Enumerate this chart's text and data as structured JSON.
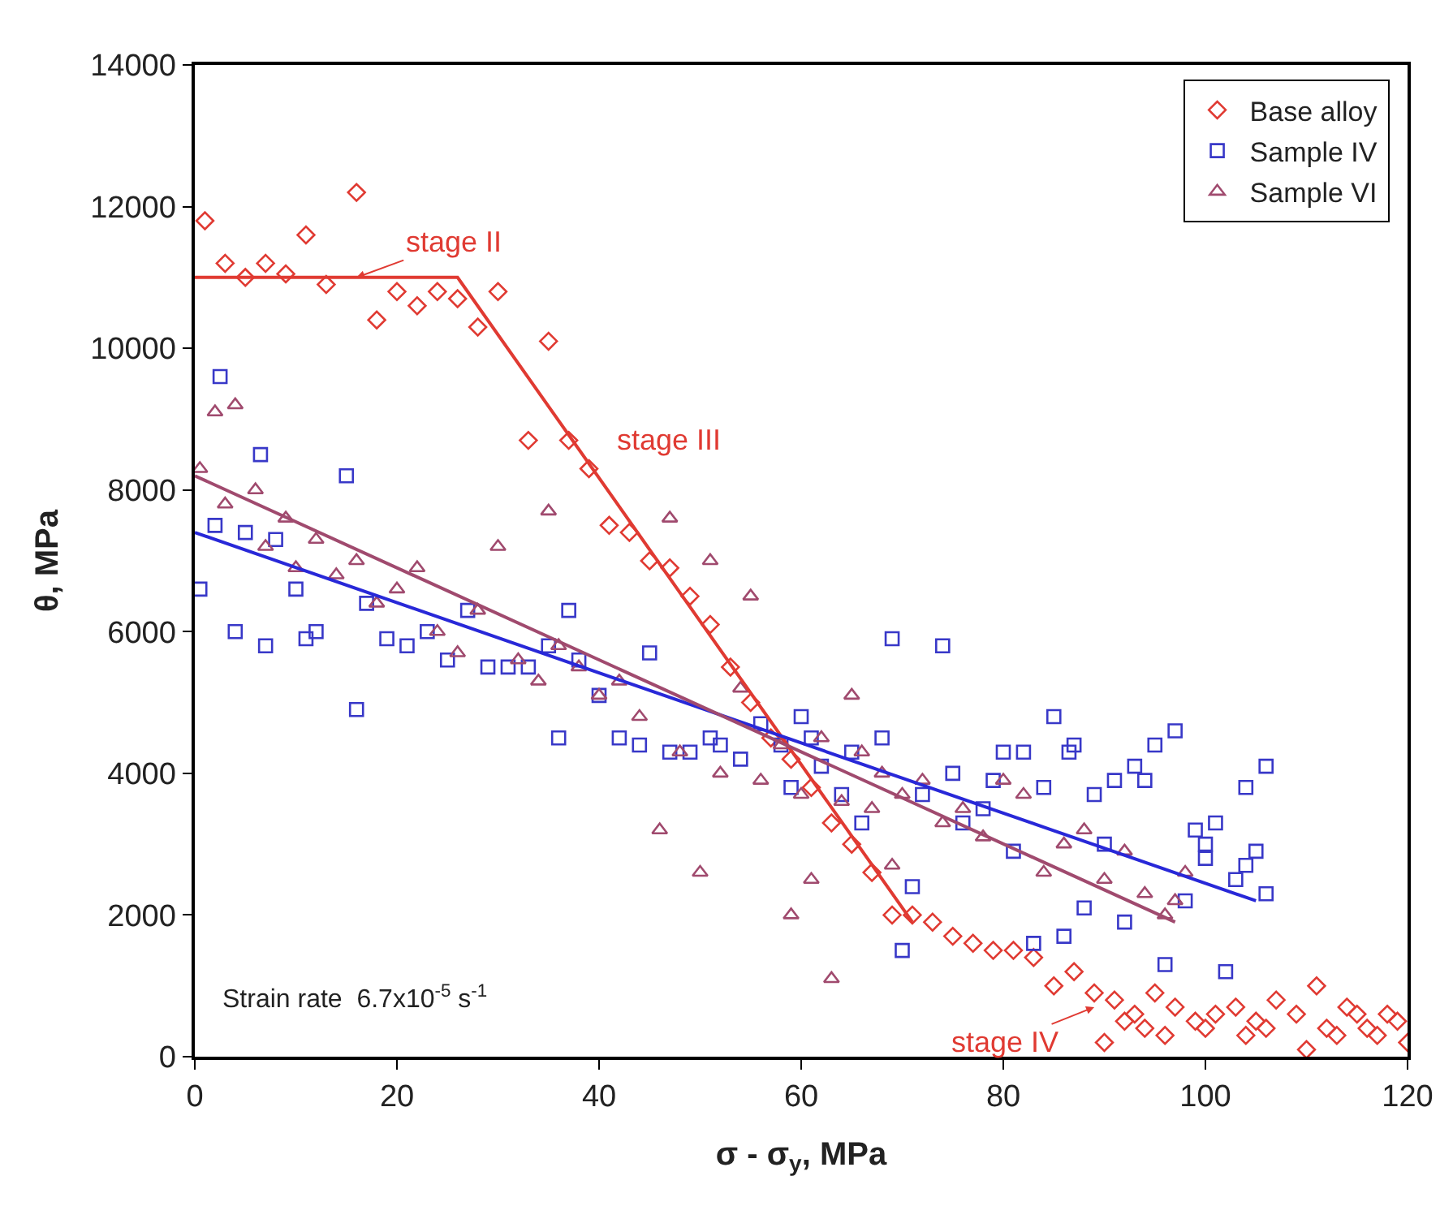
{
  "chart_data": {
    "type": "scatter",
    "xlabel": "σ - σ$_{y}$, MPa",
    "ylabel": "θ, MPa",
    "xlim": [
      0,
      120
    ],
    "xticks": [
      0,
      20,
      40,
      60,
      80,
      100,
      120
    ],
    "ylim": [
      0,
      14000
    ],
    "yticks": [
      0,
      2000,
      4000,
      6000,
      8000,
      10000,
      12000,
      14000
    ],
    "grid": false,
    "legend": "top right",
    "series": [
      {
        "name": "Base alloy",
        "color": "#e03a32",
        "marker": "diamond",
        "x": [
          1,
          3,
          5,
          7,
          9,
          11,
          13,
          16,
          18,
          20,
          22,
          24,
          26,
          28,
          30,
          33,
          35,
          37,
          39,
          41,
          43,
          45,
          47,
          49,
          51,
          53,
          55,
          57,
          59,
          61,
          63,
          65,
          67,
          69,
          71,
          73,
          75,
          77,
          79,
          81,
          83,
          85,
          87,
          89,
          90,
          91,
          92,
          93,
          94,
          95,
          96,
          97,
          99,
          100,
          101,
          103,
          104,
          105,
          106,
          107,
          109,
          110,
          111,
          112,
          113,
          114,
          115,
          116,
          117,
          118,
          119,
          120
        ],
        "values": [
          11800,
          11200,
          11000,
          11200,
          11050,
          11600,
          10900,
          12200,
          10400,
          10800,
          10600,
          10800,
          10700,
          10300,
          10800,
          8700,
          10100,
          8700,
          8300,
          7500,
          7400,
          7000,
          6900,
          6500,
          6100,
          5500,
          5000,
          4500,
          4200,
          3800,
          3300,
          3000,
          2600,
          2000,
          2000,
          1900,
          1700,
          1600,
          1500,
          1500,
          1400,
          1000,
          1200,
          900,
          200,
          800,
          500,
          600,
          400,
          900,
          300,
          700,
          500,
          400,
          600,
          700,
          300,
          500,
          400,
          800,
          600,
          100,
          1000,
          400,
          300,
          700,
          600,
          400,
          300,
          600,
          500,
          200
        ]
      },
      {
        "name": "Sample IV",
        "color": "#3838c8",
        "marker": "square",
        "x": [
          0.5,
          2,
          2.5,
          4,
          5,
          6.5,
          7,
          8,
          10,
          11,
          12,
          15,
          16,
          17,
          19,
          21,
          23,
          25,
          27,
          29,
          31,
          33,
          35,
          36,
          37,
          38,
          40,
          42,
          44,
          45,
          47,
          49,
          51,
          52,
          54,
          56,
          58,
          59,
          60,
          61,
          62,
          64,
          65,
          66,
          68,
          69,
          70,
          71,
          72,
          74,
          75,
          76,
          78,
          79,
          80,
          81,
          82,
          83,
          84,
          85,
          86,
          86.5,
          87,
          88,
          89,
          90,
          91,
          92,
          93,
          94,
          95,
          96,
          97,
          98,
          99,
          100,
          100,
          101,
          102,
          103,
          104,
          104,
          105,
          106,
          106
        ],
        "values": [
          6600,
          7500,
          9600,
          6000,
          7400,
          8500,
          5800,
          7300,
          6600,
          5900,
          6000,
          8200,
          4900,
          6400,
          5900,
          5800,
          6000,
          5600,
          6300,
          5500,
          5500,
          5500,
          5800,
          4500,
          6300,
          5600,
          5100,
          4500,
          4400,
          5700,
          4300,
          4300,
          4500,
          4400,
          4200,
          4700,
          4400,
          3800,
          4800,
          4500,
          4100,
          3700,
          4300,
          3300,
          4500,
          5900,
          1500,
          2400,
          3700,
          5800,
          4000,
          3300,
          3500,
          3900,
          4300,
          2900,
          4300,
          1600,
          3800,
          4800,
          1700,
          4300,
          4400,
          2100,
          3700,
          3000,
          3900,
          1900,
          4100,
          3900,
          4400,
          1300,
          4600,
          2200,
          3200,
          3000,
          2800,
          3300,
          1200,
          2500,
          3800,
          2700,
          2900,
          4100,
          2300
        ]
      },
      {
        "name": "Sample VI",
        "color": "#a04a6e",
        "marker": "triangle",
        "x": [
          0.5,
          2,
          3,
          4,
          6,
          7,
          9,
          10,
          12,
          14,
          16,
          18,
          20,
          22,
          24,
          26,
          28,
          30,
          32,
          34,
          35,
          36,
          38,
          40,
          42,
          44,
          46,
          47,
          48,
          50,
          51,
          52,
          54,
          55,
          56,
          58,
          59,
          60,
          61,
          62,
          63,
          64,
          65,
          66,
          67,
          68,
          69,
          70,
          72,
          74,
          76,
          78,
          80,
          82,
          84,
          86,
          88,
          90,
          92,
          94,
          96,
          97,
          98
        ],
        "values": [
          8300,
          9100,
          7800,
          9200,
          8000,
          7200,
          7600,
          6900,
          7300,
          6800,
          7000,
          6400,
          6600,
          6900,
          6000,
          5700,
          6300,
          7200,
          5600,
          5300,
          7700,
          5800,
          5500,
          5100,
          5300,
          4800,
          3200,
          7600,
          4300,
          2600,
          7000,
          4000,
          5200,
          6500,
          3900,
          4400,
          2000,
          3700,
          2500,
          4500,
          1100,
          3600,
          5100,
          4300,
          3500,
          4000,
          2700,
          3700,
          3900,
          3300,
          3500,
          3100,
          3900,
          3700,
          2600,
          3000,
          3200,
          2500,
          2900,
          2300,
          2000,
          2200,
          2600
        ]
      },
      {
        "type": "line",
        "color": "#e03a32",
        "marker": "none",
        "x": [
          0,
          26,
          71
        ],
        "values": [
          11000,
          11000,
          1900
        ]
      },
      {
        "type": "line",
        "color": "#2828d8",
        "marker": "none",
        "x": [
          0,
          105
        ],
        "values": [
          7400,
          2200
        ]
      },
      {
        "type": "line",
        "color": "#a04a6e",
        "marker": "none",
        "x": [
          0,
          97
        ],
        "values": [
          8200,
          1900
        ]
      }
    ],
    "annotations": [
      {
        "text": "stage II",
        "x": 16,
        "y": 11000
      },
      {
        "text": "stage III",
        "x": 38,
        "y": 8700
      },
      {
        "text": "stage IV",
        "x": 89,
        "y": 700
      },
      "Strain rate  6.7x10$^{-5}$ s$^{-1}$"
    ]
  }
}
